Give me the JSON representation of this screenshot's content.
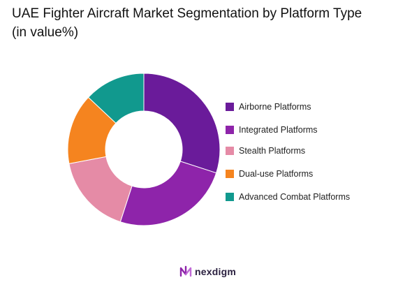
{
  "chart_data": {
    "type": "pie",
    "variant": "donut",
    "title": "UAE Fighter Aircraft Market Segmentation by Platform Type",
    "subtitle": "(in value%)",
    "legend_placement": "right",
    "slices": [
      {
        "name": "Airborne Platforms",
        "value": 30,
        "color": "#6a1b9a"
      },
      {
        "name": "Integrated Platforms",
        "value": 25,
        "color": "#8e24aa"
      },
      {
        "name": "Stealth Platforms",
        "value": 17,
        "color": "#e58ba6"
      },
      {
        "name": "Dual-use Platforms",
        "value": 15,
        "color": "#f5841f"
      },
      {
        "name": "Advanced Combat Platforms",
        "value": 13,
        "color": "#11998e"
      }
    ]
  },
  "logo": {
    "text": "nexdigm",
    "color": "#8e24aa"
  }
}
